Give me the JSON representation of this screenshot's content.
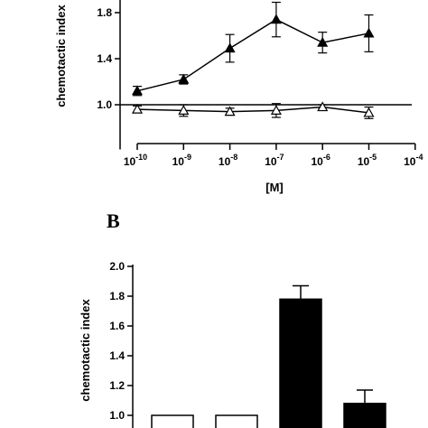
{
  "chart_data": [
    {
      "type": "line",
      "xlabel": "[M]",
      "ylabel": "chemotactic index",
      "x_scale": "log",
      "x_tick_exponents": [
        "-10",
        "-9",
        "-8",
        "-7",
        "-6",
        "-5",
        "-4"
      ],
      "x_tick_base": "10",
      "y_ticks": [
        "1.0",
        "1.4",
        "1.8"
      ],
      "ylim": [
        0.8,
        2.0
      ],
      "reference_line": 1.0,
      "grid": false,
      "series": [
        {
          "marker": "filled-triangle",
          "x": [
            1e-10,
            1e-09,
            1e-08,
            1e-07,
            1e-06,
            1e-05
          ],
          "values": [
            1.12,
            1.22,
            1.49,
            1.74,
            1.54,
            1.62
          ],
          "errors": [
            0.04,
            0.04,
            0.12,
            0.15,
            0.09,
            0.16
          ]
        },
        {
          "marker": "open-triangle",
          "x": [
            1e-10,
            1e-09,
            1e-08,
            1e-07,
            1e-06,
            1e-05
          ],
          "values": [
            0.96,
            0.95,
            0.94,
            0.95,
            0.98,
            0.93
          ],
          "errors": [
            0.03,
            0.05,
            0.03,
            0.06,
            0.02,
            0.05
          ]
        }
      ]
    },
    {
      "type": "bar",
      "panel_label": "B",
      "ylabel": "chemotactic index",
      "y_ticks": [
        "1.0",
        "1.2",
        "1.4",
        "1.6",
        "1.8",
        "2.0"
      ],
      "ylim": [
        1.0,
        2.0
      ],
      "bars": [
        {
          "value": 1.0,
          "error": 0.0,
          "fill": "open"
        },
        {
          "value": 1.0,
          "error": 0.0,
          "fill": "open"
        },
        {
          "value": 1.78,
          "error": 0.09,
          "fill": "filled"
        },
        {
          "value": 1.08,
          "error": 0.09,
          "fill": "filled"
        }
      ]
    }
  ]
}
